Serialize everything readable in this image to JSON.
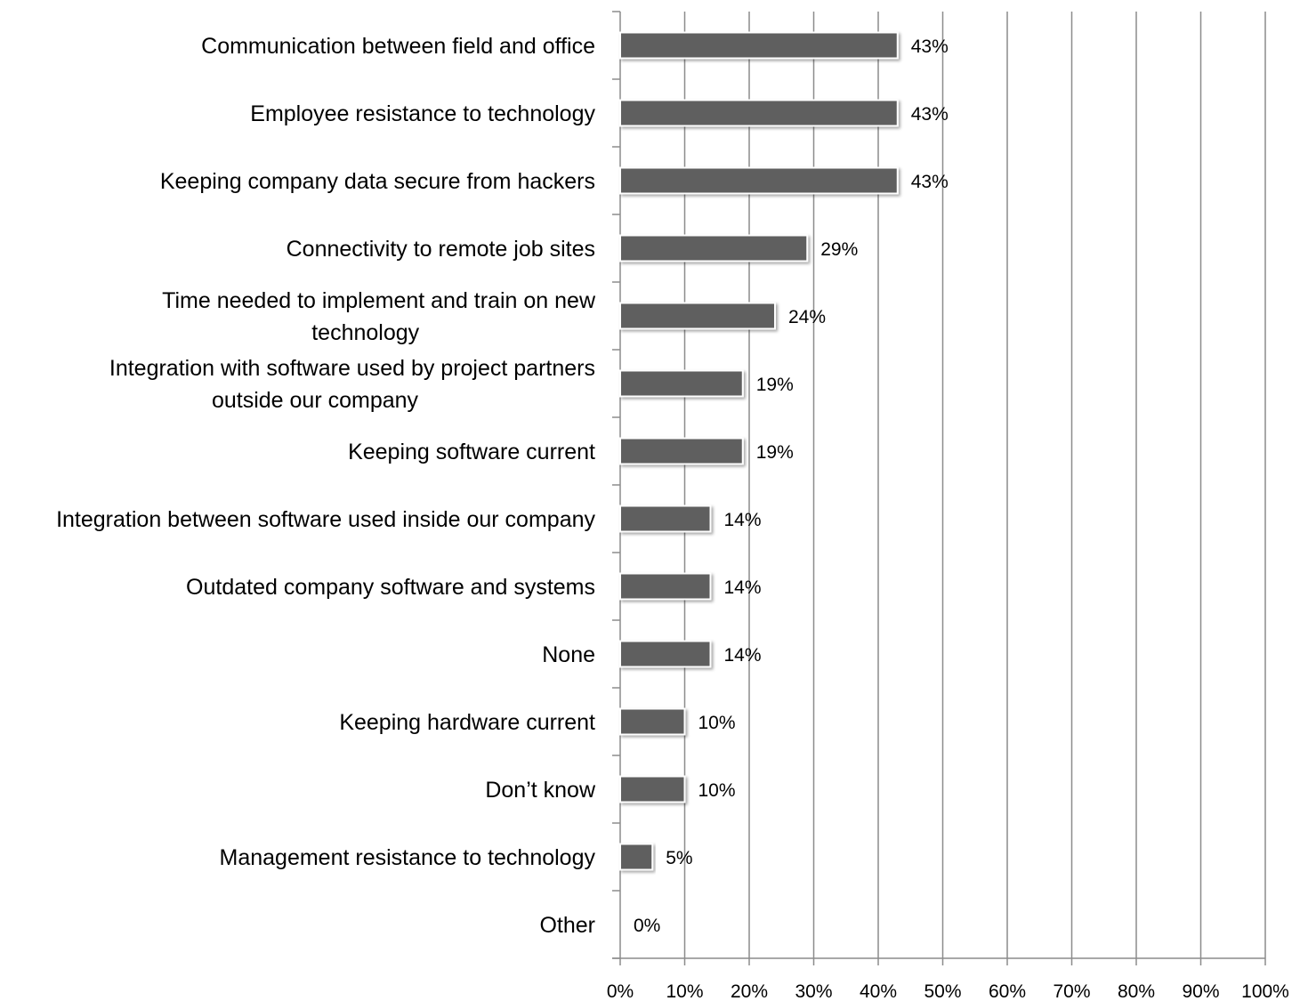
{
  "chart_data": {
    "type": "bar",
    "orientation": "horizontal",
    "categories": [
      "Communication between field and office",
      "Employee resistance to technology",
      "Keeping company data secure from hackers",
      "Connectivity to remote job sites",
      "Time needed to implement and train on new technology",
      "Integration with software used by project partners outside our company",
      "Keeping software current",
      "Integration between software used inside our company",
      "Outdated company software and systems",
      "None",
      "Keeping hardware current",
      "Don’t know",
      "Management resistance to technology",
      "Other"
    ],
    "category_lines": [
      [
        "Communication between field and office"
      ],
      [
        "Employee resistance to technology"
      ],
      [
        "Keeping company data secure from hackers"
      ],
      [
        "Connectivity to remote job sites"
      ],
      [
        "Time needed to implement and train on new",
        "technology"
      ],
      [
        "Integration with software used by project partners",
        "outside our company"
      ],
      [
        "Keeping software current"
      ],
      [
        "Integration between software used inside our company"
      ],
      [
        "Outdated company software and systems"
      ],
      [
        "None"
      ],
      [
        "Keeping hardware current"
      ],
      [
        "Don’t know"
      ],
      [
        "Management resistance to technology"
      ],
      [
        "Other"
      ]
    ],
    "values": [
      43,
      43,
      43,
      29,
      24,
      19,
      19,
      14,
      14,
      14,
      10,
      10,
      5,
      0
    ],
    "data_labels": [
      "43%",
      "43%",
      "43%",
      "29%",
      "24%",
      "19%",
      "19%",
      "14%",
      "14%",
      "14%",
      "10%",
      "10%",
      "5%",
      "0%"
    ],
    "xlim": [
      0,
      100
    ],
    "x_ticks": [
      0,
      10,
      20,
      30,
      40,
      50,
      60,
      70,
      80,
      90,
      100
    ],
    "x_tick_labels": [
      "0%",
      "10%",
      "20%",
      "30%",
      "40%",
      "50%",
      "60%",
      "70%",
      "80%",
      "90%",
      "100%"
    ],
    "bar_color": "#5f5f5f",
    "grid": "vertical",
    "legend": "none"
  }
}
